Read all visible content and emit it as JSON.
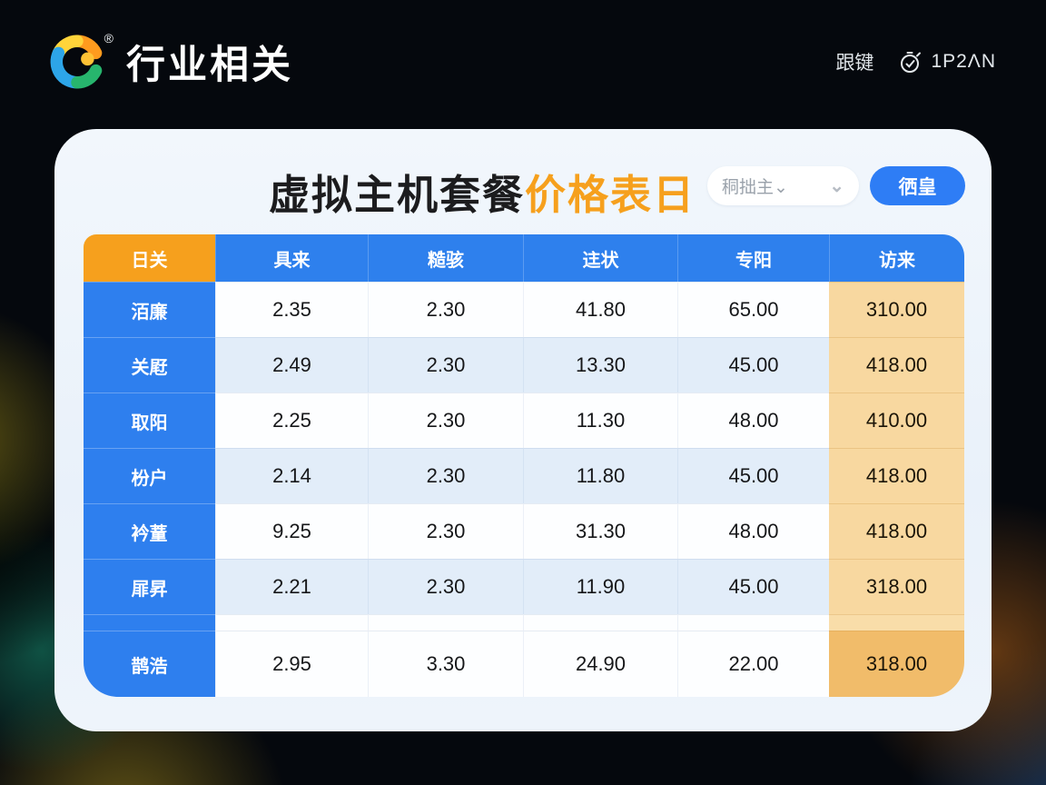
{
  "topbar": {
    "brand": "行业相关",
    "brand_mark": "®",
    "nav_link": "跟键",
    "duration": "1P2ΛN"
  },
  "card": {
    "title_black": "虚拟主机套餐",
    "title_orange": "价格表日",
    "dropdown_value": "秱拙主⌄",
    "dropdown_chevron": "⌄",
    "button_label": "徆皇"
  },
  "table": {
    "columns": [
      "日关",
      "具来",
      "糙骇",
      "迬状",
      "专阳",
      "访来"
    ],
    "rows": [
      {
        "label": "洦廉",
        "values": [
          "2.35",
          "2.30",
          "41.80",
          "65.00",
          "310.00"
        ]
      },
      {
        "label": "关屘",
        "values": [
          "2.49",
          "2.30",
          "13.30",
          "45.00",
          "418.00"
        ]
      },
      {
        "label": "取阳",
        "values": [
          "2.25",
          "2.30",
          "11.30",
          "48.00",
          "410.00"
        ]
      },
      {
        "label": "枌户",
        "values": [
          "2.14",
          "2.30",
          "11.80",
          "45.00",
          "418.00"
        ]
      },
      {
        "label": "衿蕫",
        "values": [
          "9.25",
          "2.30",
          "31.30",
          "48.00",
          "418.00"
        ]
      },
      {
        "label": "屝昇",
        "values": [
          "2.21",
          "2.30",
          "11.90",
          "45.00",
          "318.00"
        ]
      },
      {
        "label": "",
        "values": [
          "",
          "",
          "",
          "",
          ""
        ],
        "spacer": true
      },
      {
        "label": "鹊浩",
        "values": [
          "2.95",
          "3.30",
          "24.90",
          "22.00",
          "318.00"
        ]
      }
    ]
  },
  "colors": {
    "accent_blue": "#2e80ed",
    "accent_blue_btn": "#2e7df5",
    "accent_orange": "#f6a01d",
    "price_col_bg": "#f8d8a0",
    "price_col_last_bg": "#f1bc6a"
  }
}
